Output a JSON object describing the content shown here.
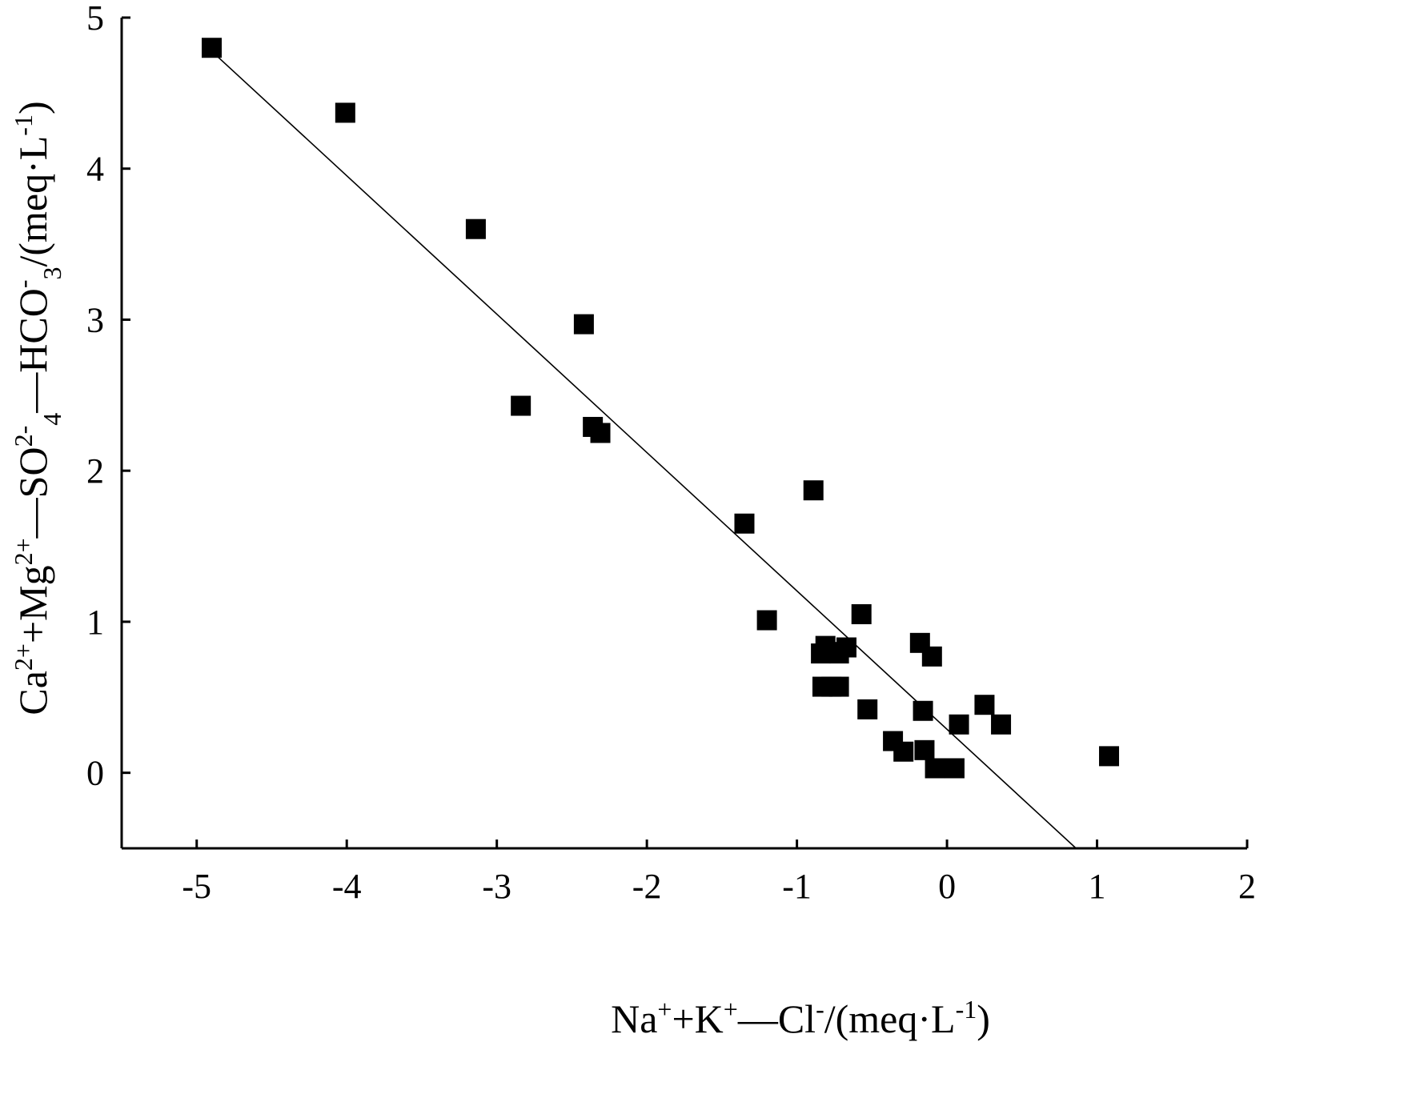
{
  "chart_data": {
    "type": "scatter",
    "xlabel": {
      "parts": [
        {
          "t": "Na"
        },
        {
          "t": "+",
          "pos": "sup"
        },
        {
          "t": "+K"
        },
        {
          "t": "+",
          "pos": "sup"
        },
        {
          "t": "—Cl"
        },
        {
          "t": "-",
          "pos": "sup"
        },
        {
          "t": "/(meq·L"
        },
        {
          "t": "-1",
          "pos": "sup"
        },
        {
          "t": ")"
        }
      ]
    },
    "ylabel": {
      "parts": [
        {
          "t": "Ca"
        },
        {
          "t": "2+",
          "pos": "sup"
        },
        {
          "t": "+Mg"
        },
        {
          "t": "2+",
          "pos": "sup"
        },
        {
          "t": "—SO"
        },
        {
          "t": "2-",
          "pos": "sup"
        },
        {
          "t": "4",
          "pos": "sub"
        },
        {
          "t": "—HCO"
        },
        {
          "t": "-",
          "pos": "sup"
        },
        {
          "t": "3",
          "pos": "sub"
        },
        {
          "t": "/(meq·L"
        },
        {
          "t": "-1",
          "pos": "sup"
        },
        {
          "t": ")"
        }
      ]
    },
    "xlim": [
      -5.5,
      2
    ],
    "ylim": [
      -0.5,
      5
    ],
    "xticks": [
      -5,
      -4,
      -3,
      -2,
      -1,
      0,
      1,
      2
    ],
    "xtick_labels": [
      "-5",
      "-4",
      "-3",
      "-2",
      "-1",
      "0",
      "1",
      "2"
    ],
    "yticks": [
      0,
      1,
      2,
      3,
      4,
      5
    ],
    "ytick_labels": [
      "0",
      "1",
      "2",
      "3",
      "4",
      "5"
    ],
    "grid": false,
    "marker": "square",
    "colors": {
      "marker": "#000000",
      "line": "#000000",
      "background": "#ffffff"
    },
    "points": [
      {
        "x": -4.9,
        "y": 4.8
      },
      {
        "x": -4.01,
        "y": 4.37
      },
      {
        "x": -3.14,
        "y": 3.6
      },
      {
        "x": -2.42,
        "y": 2.97
      },
      {
        "x": -2.84,
        "y": 2.43
      },
      {
        "x": -2.36,
        "y": 2.29
      },
      {
        "x": -2.31,
        "y": 2.25
      },
      {
        "x": -1.35,
        "y": 1.65
      },
      {
        "x": -0.89,
        "y": 1.87
      },
      {
        "x": -1.2,
        "y": 1.01
      },
      {
        "x": -0.57,
        "y": 1.05
      },
      {
        "x": -0.84,
        "y": 0.79
      },
      {
        "x": -0.81,
        "y": 0.84
      },
      {
        "x": -0.78,
        "y": 0.8
      },
      {
        "x": -0.72,
        "y": 0.79
      },
      {
        "x": -0.67,
        "y": 0.83
      },
      {
        "x": -0.83,
        "y": 0.57
      },
      {
        "x": -0.77,
        "y": 0.57
      },
      {
        "x": -0.72,
        "y": 0.57
      },
      {
        "x": -0.53,
        "y": 0.42
      },
      {
        "x": -0.18,
        "y": 0.86
      },
      {
        "x": -0.1,
        "y": 0.77
      },
      {
        "x": -0.16,
        "y": 0.41
      },
      {
        "x": 0.08,
        "y": 0.32
      },
      {
        "x": 0.25,
        "y": 0.45
      },
      {
        "x": 0.36,
        "y": 0.32
      },
      {
        "x": -0.36,
        "y": 0.21
      },
      {
        "x": -0.29,
        "y": 0.14
      },
      {
        "x": -0.15,
        "y": 0.15
      },
      {
        "x": -0.08,
        "y": 0.03
      },
      {
        "x": 0.05,
        "y": 0.03
      },
      {
        "x": 1.08,
        "y": 0.11
      }
    ],
    "fit_line": {
      "x": [
        -4.87,
        0.86
      ],
      "y": [
        4.75,
        -0.5
      ]
    }
  }
}
